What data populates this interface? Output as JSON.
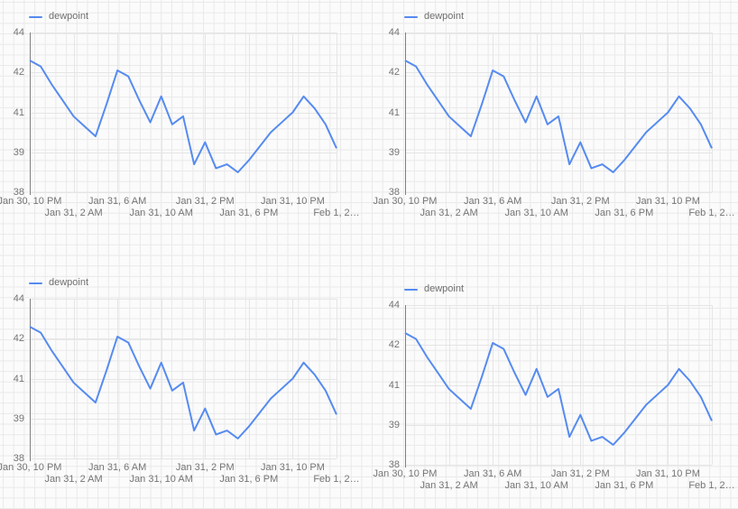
{
  "app": {
    "background_color": "#fbfbfb",
    "paper_grid_color": "#e9e9e9",
    "panel_count": 4
  },
  "chart_data": {
    "type": "line",
    "title": "",
    "legend": {
      "entries": [
        "dewpoint"
      ],
      "position": "top-left"
    },
    "series": [
      {
        "name": "dewpoint",
        "color": "#568bf0",
        "x_start": "Jan 30, 10 PM",
        "x_interval_hours": 1,
        "values": [
          42.6,
          42.3,
          41.7,
          41.3,
          40.8,
          40.3,
          39.8,
          41.2,
          42.1,
          41.9,
          41.3,
          40.5,
          41.4,
          40.4,
          40.8,
          38.7,
          39.5,
          38.6,
          38.7,
          38.5,
          38.8,
          39.3,
          40.0,
          40.5,
          41.0,
          41.4,
          41.1,
          40.4,
          39.2
        ]
      }
    ],
    "x_tick_labels": [
      "Jan 30, 10 PM",
      "Jan 31, 2 AM",
      "Jan 31, 6 AM",
      "Jan 31, 10 AM",
      "Jan 31, 2 PM",
      "Jan 31, 6 PM",
      "Jan 31, 10 PM",
      "Feb 1, 2…"
    ],
    "y_tick_labels": [
      "44",
      "42",
      "41",
      "39",
      "38"
    ],
    "y_tick_values": [
      44,
      42,
      41,
      39,
      38
    ],
    "ylim": [
      38,
      44
    ],
    "y_scale": "log-like (ticks evenly spaced)",
    "grid": true,
    "axis_color": "#808080",
    "gridline_color": "#e5e5e5",
    "tick_label_color": "#757575"
  },
  "panels": [
    {
      "id": "top-left"
    },
    {
      "id": "top-right"
    },
    {
      "id": "bottom-left"
    },
    {
      "id": "bottom-right"
    }
  ]
}
